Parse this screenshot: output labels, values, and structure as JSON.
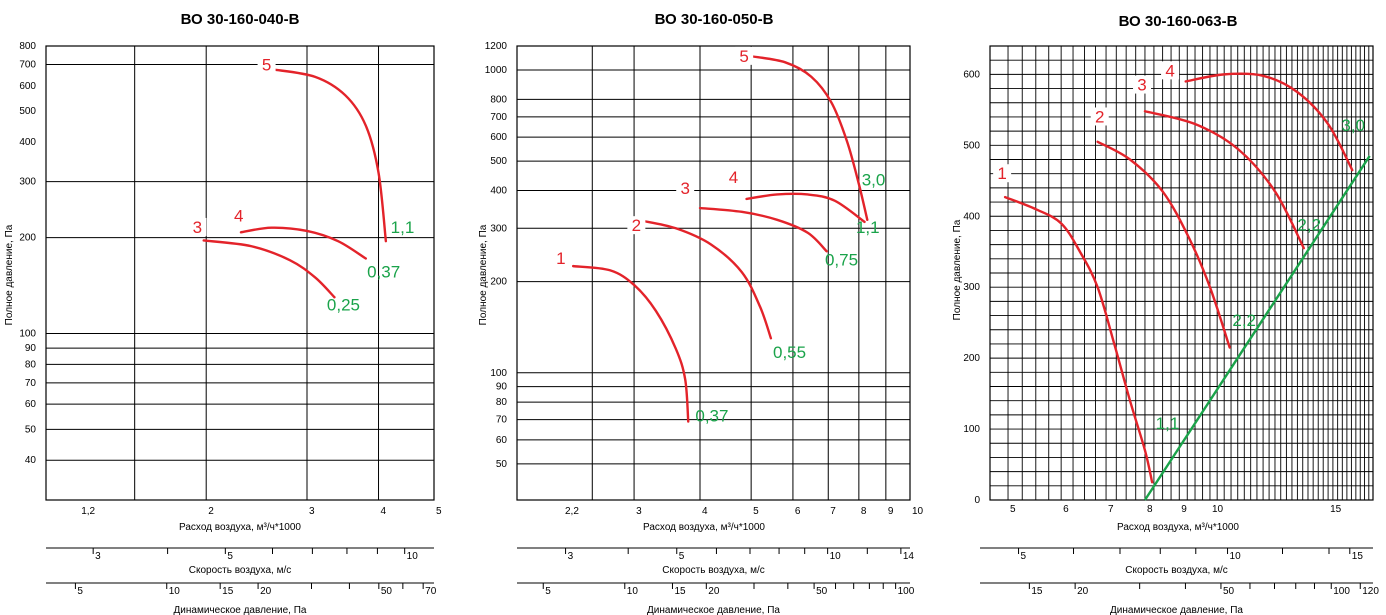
{
  "colors": {
    "curve": "#e3232a",
    "power": "#1aa34a",
    "grid": "#000000",
    "label_bg": "#ffffff"
  },
  "chart_data": [
    {
      "type": "line",
      "title": "ВО 30-160-040-В",
      "xlabel": "Расход воздуха, м³/ч*1000",
      "ylabel": "Полное давление, Па",
      "x_scale": "log",
      "y_scale": "log",
      "xlim": [
        1.05,
        5
      ],
      "ylim": [
        30,
        800
      ],
      "x_ticks": [
        {
          "v": 1.2,
          "label": "1,2"
        },
        {
          "v": 2,
          "label": "2"
        },
        {
          "v": 3,
          "label": "3"
        },
        {
          "v": 4,
          "label": "4"
        },
        {
          "v": 5,
          "label": "5"
        }
      ],
      "x_grid": [
        1.5,
        2,
        3,
        4,
        5
      ],
      "y_ticks": [
        {
          "v": 40,
          "label": "40"
        },
        {
          "v": 50,
          "label": "50"
        },
        {
          "v": 60,
          "label": "60"
        },
        {
          "v": 70,
          "label": "70"
        },
        {
          "v": 80,
          "label": "80"
        },
        {
          "v": 90,
          "label": "90"
        },
        {
          "v": 100,
          "label": "100"
        },
        {
          "v": 200,
          "label": "200"
        },
        {
          "v": 300,
          "label": "300"
        },
        {
          "v": 400,
          "label": "400"
        },
        {
          "v": 500,
          "label": "500"
        },
        {
          "v": 600,
          "label": "600"
        },
        {
          "v": 700,
          "label": "700"
        },
        {
          "v": 800,
          "label": "800"
        }
      ],
      "y_grid": [
        40,
        50,
        60,
        70,
        80,
        90,
        100,
        200,
        300,
        700
      ],
      "series": [
        {
          "name": "3",
          "points": [
            [
              1.98,
              196
            ],
            [
              2.4,
              188
            ],
            [
              2.8,
              170
            ],
            [
              3.1,
              150
            ],
            [
              3.35,
              130
            ]
          ],
          "name_at": [
            1.93,
            210
          ],
          "power": "0,25",
          "power_at": [
            3.25,
            118
          ]
        },
        {
          "name": "4",
          "points": [
            [
              2.3,
              208
            ],
            [
              2.6,
              215
            ],
            [
              3.0,
              210
            ],
            [
              3.4,
              195
            ],
            [
              3.8,
              172
            ]
          ],
          "name_at": [
            2.28,
            228
          ],
          "power": "0,37",
          "power_at": [
            3.82,
            150
          ]
        },
        {
          "name": "5",
          "points": [
            [
              2.62,
              675
            ],
            [
              3.1,
              640
            ],
            [
              3.5,
              560
            ],
            [
              3.8,
              450
            ],
            [
              4.0,
              320
            ],
            [
              4.12,
              195
            ]
          ],
          "name_at": [
            2.55,
            680
          ],
          "power": "1,1",
          "power_at": [
            4.2,
            207
          ]
        }
      ],
      "extra_axes": [
        {
          "label": "Скорость воздуха, м/с",
          "min": 2.5,
          "max": 11.2,
          "ticks": [
            {
              "v": 3,
              "label": "3"
            },
            {
              "v": 4
            },
            {
              "v": 5,
              "label": "5"
            },
            {
              "v": 6
            },
            {
              "v": 7
            },
            {
              "v": 8
            },
            {
              "v": 9
            },
            {
              "v": 10,
              "label": "10"
            }
          ]
        },
        {
          "label": "Динамическое давление, Па",
          "min": 4,
          "max": 76,
          "ticks": [
            {
              "v": 5,
              "label": "5"
            },
            {
              "v": 10,
              "label": "10"
            },
            {
              "v": 15,
              "label": "15"
            },
            {
              "v": 20,
              "label": "20"
            },
            {
              "v": 30
            },
            {
              "v": 40
            },
            {
              "v": 50,
              "label": "50"
            },
            {
              "v": 60
            },
            {
              "v": 70,
              "label": "70"
            }
          ]
        }
      ]
    },
    {
      "type": "line",
      "title": "ВО 30-160-050-В",
      "xlabel": "Расход воздуха, м³/ч*1000",
      "ylabel": "Полное давление, Па",
      "x_scale": "log",
      "y_scale": "log",
      "xlim": [
        1.8,
        10
      ],
      "ylim": [
        38,
        1200
      ],
      "x_ticks": [
        {
          "v": 2.2,
          "label": "2,2"
        },
        {
          "v": 3,
          "label": "3"
        },
        {
          "v": 4,
          "label": "4"
        },
        {
          "v": 5,
          "label": "5"
        },
        {
          "v": 6,
          "label": "6"
        },
        {
          "v": 7,
          "label": "7"
        },
        {
          "v": 8,
          "label": "8"
        },
        {
          "v": 9,
          "label": "9"
        },
        {
          "v": 10,
          "label": "10"
        }
      ],
      "x_grid": [
        2.5,
        3,
        4,
        5,
        6,
        7,
        8,
        9,
        10
      ],
      "y_ticks": [
        {
          "v": 50,
          "label": "50"
        },
        {
          "v": 60,
          "label": "60"
        },
        {
          "v": 70,
          "label": "70"
        },
        {
          "v": 80,
          "label": "80"
        },
        {
          "v": 90,
          "label": "90"
        },
        {
          "v": 100,
          "label": "100"
        },
        {
          "v": 200,
          "label": "200"
        },
        {
          "v": 300,
          "label": "300"
        },
        {
          "v": 400,
          "label": "400"
        },
        {
          "v": 500,
          "label": "500"
        },
        {
          "v": 600,
          "label": "600"
        },
        {
          "v": 700,
          "label": "700"
        },
        {
          "v": 800,
          "label": "800"
        },
        {
          "v": 1000,
          "label": "1000"
        },
        {
          "v": 1200,
          "label": "1200"
        }
      ],
      "y_grid": [
        50,
        60,
        70,
        80,
        90,
        100,
        200,
        300,
        400,
        500,
        600,
        700,
        800,
        1000
      ],
      "series": [
        {
          "name": "1",
          "points": [
            [
              2.3,
              225
            ],
            [
              2.7,
              218
            ],
            [
              3.0,
              195
            ],
            [
              3.3,
              160
            ],
            [
              3.6,
              120
            ],
            [
              3.75,
              95
            ],
            [
              3.8,
              69
            ]
          ],
          "name_at": [
            2.18,
            232
          ],
          "power": "0,37",
          "power_at": [
            3.92,
            69
          ]
        },
        {
          "name": "2",
          "points": [
            [
              3.1,
              318
            ],
            [
              3.6,
              300
            ],
            [
              4.2,
              265
            ],
            [
              4.8,
              215
            ],
            [
              5.2,
              165
            ],
            [
              5.45,
              130
            ]
          ],
          "name_at": [
            3.03,
            298
          ],
          "power": "0,55",
          "power_at": [
            5.5,
            112
          ]
        },
        {
          "name": "3",
          "points": [
            [
              4.0,
              350
            ],
            [
              4.8,
              340
            ],
            [
              5.6,
              320
            ],
            [
              6.4,
              290
            ],
            [
              6.95,
              252
            ]
          ],
          "name_at": [
            3.75,
            395
          ],
          "power": "0,75",
          "power_at": [
            6.9,
            226
          ]
        },
        {
          "name": "4",
          "points": [
            [
              4.9,
              375
            ],
            [
              5.6,
              388
            ],
            [
              6.4,
              388
            ],
            [
              7.2,
              370
            ],
            [
              8.2,
              315
            ]
          ],
          "name_at": [
            4.63,
            430
          ],
          "power": "1,1",
          "power_at": [
            7.9,
            290
          ]
        },
        {
          "name": "5",
          "points": [
            [
              5.0,
              1110
            ],
            [
              5.8,
              1060
            ],
            [
              6.5,
              950
            ],
            [
              7.1,
              780
            ],
            [
              7.6,
              580
            ],
            [
              8.0,
              420
            ],
            [
              8.3,
              320
            ]
          ],
          "name_at": [
            4.85,
            1080
          ],
          "power": "3,0",
          "power_at": [
            8.1,
            415
          ]
        }
      ],
      "extra_axes": [
        {
          "label": "Скорость воздуха, м/с",
          "min": 2.4,
          "max": 14.6,
          "ticks": [
            {
              "v": 3,
              "label": "3"
            },
            {
              "v": 4
            },
            {
              "v": 5,
              "label": "5"
            },
            {
              "v": 6
            },
            {
              "v": 7
            },
            {
              "v": 8
            },
            {
              "v": 9
            },
            {
              "v": 10,
              "label": "10"
            },
            {
              "v": 12
            },
            {
              "v": 14,
              "label": "14"
            }
          ]
        },
        {
          "label": "Динамическое давление, Па",
          "min": 4,
          "max": 113,
          "ticks": [
            {
              "v": 5,
              "label": "5"
            },
            {
              "v": 10,
              "label": "10"
            },
            {
              "v": 15,
              "label": "15"
            },
            {
              "v": 20,
              "label": "20"
            },
            {
              "v": 30
            },
            {
              "v": 40
            },
            {
              "v": 50,
              "label": "50"
            },
            {
              "v": 60
            },
            {
              "v": 70
            },
            {
              "v": 80
            },
            {
              "v": 90
            },
            {
              "v": 100,
              "label": "100"
            }
          ]
        }
      ]
    },
    {
      "type": "line",
      "title": "ВО 30-160-063-В",
      "xlabel": "Расход воздуха, м³/ч*1000",
      "ylabel": "Полное давление, Па",
      "x_scale": "log",
      "y_scale": "linear",
      "xlim": [
        4.7,
        17.5
      ],
      "ylim": [
        0,
        640
      ],
      "x_ticks": [
        {
          "v": 5,
          "label": "5"
        },
        {
          "v": 6,
          "label": "6"
        },
        {
          "v": 7,
          "label": "7"
        },
        {
          "v": 8,
          "label": "8"
        },
        {
          "v": 9,
          "label": "9"
        },
        {
          "v": 10,
          "label": "10"
        },
        {
          "v": 15,
          "label": "15"
        }
      ],
      "x_grid_step": 0.25,
      "y_ticks": [
        {
          "v": 0,
          "label": "0"
        },
        {
          "v": 100,
          "label": "100"
        },
        {
          "v": 200,
          "label": "200"
        },
        {
          "v": 300,
          "label": "300"
        },
        {
          "v": 400,
          "label": "400"
        },
        {
          "v": 500,
          "label": "500"
        },
        {
          "v": 600,
          "label": "600"
        }
      ],
      "y_grid_step": 20,
      "series": [
        {
          "name": "1",
          "points": [
            [
              4.95,
              427
            ],
            [
              5.5,
              410
            ],
            [
              6.0,
              390
            ],
            [
              6.4,
              350
            ],
            [
              6.8,
              300
            ],
            [
              7.2,
              220
            ],
            [
              7.6,
              140
            ],
            [
              8.0,
              70
            ],
            [
              8.2,
              25
            ]
          ],
          "name_at": [
            4.9,
            455
          ],
          "power": "1,1",
          "power_at": [
            8.3,
            100
          ]
        },
        {
          "name": "2",
          "points": [
            [
              6.8,
              505
            ],
            [
              7.6,
              480
            ],
            [
              8.5,
              435
            ],
            [
              9.3,
              370
            ],
            [
              10.0,
              300
            ],
            [
              10.7,
              215
            ]
          ],
          "name_at": [
            6.85,
            535
          ],
          "power": "2,2",
          "power_at": [
            10.8,
            245
          ]
        },
        {
          "name": "3",
          "points": [
            [
              8.0,
              548
            ],
            [
              9.5,
              530
            ],
            [
              11.0,
              495
            ],
            [
              12.5,
              435
            ],
            [
              13.8,
              355
            ]
          ],
          "name_at": [
            7.92,
            580
          ],
          "power": "2,2",
          "power_at": [
            13.5,
            380
          ]
        },
        {
          "name": "4",
          "points": [
            [
              9.2,
              590
            ],
            [
              10.5,
              600
            ],
            [
              12.0,
              598
            ],
            [
              13.5,
              575
            ],
            [
              15.0,
              530
            ],
            [
              16.3,
              465
            ]
          ],
          "name_at": [
            8.72,
            600
          ],
          "power": "3,0",
          "power_at": [
            15.7,
            520
          ]
        }
      ],
      "power_line": {
        "points": [
          [
            8.0,
            0
          ],
          [
            17.3,
            485
          ]
        ]
      },
      "extra_axes": [
        {
          "label": "Скорость воздуха, м/с",
          "min": 4.4,
          "max": 16.2,
          "ticks": [
            {
              "v": 5,
              "label": "5"
            },
            {
              "v": 6
            },
            {
              "v": 7
            },
            {
              "v": 8
            },
            {
              "v": 9
            },
            {
              "v": 10,
              "label": "10"
            },
            {
              "v": 12
            },
            {
              "v": 14
            },
            {
              "v": 15,
              "label": "15"
            }
          ]
        },
        {
          "label": "Динамическое давление, Па",
          "min": 11,
          "max": 130,
          "ticks": [
            {
              "v": 15,
              "label": "15"
            },
            {
              "v": 20,
              "label": "20"
            },
            {
              "v": 30
            },
            {
              "v": 40
            },
            {
              "v": 50,
              "label": "50"
            },
            {
              "v": 60
            },
            {
              "v": 70
            },
            {
              "v": 80
            },
            {
              "v": 90
            },
            {
              "v": 100,
              "label": "100"
            },
            {
              "v": 120,
              "label": "120"
            }
          ]
        }
      ]
    }
  ]
}
